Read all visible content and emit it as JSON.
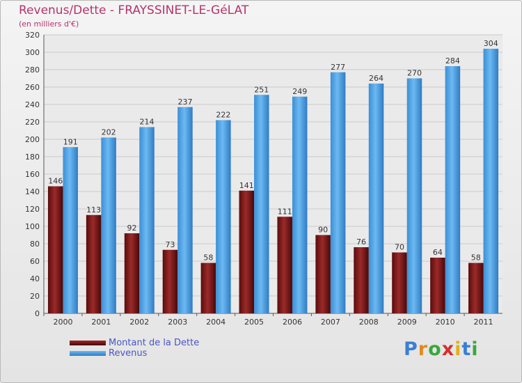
{
  "chart_data": {
    "type": "bar",
    "title": "Revenus/Dette - FRAYSSINET-LE-GéLAT",
    "subtitle": "(en milliers d'€)",
    "categories": [
      "2000",
      "2001",
      "2002",
      "2003",
      "2004",
      "2005",
      "2006",
      "2007",
      "2008",
      "2009",
      "2010",
      "2011"
    ],
    "series": [
      {
        "name": "Montant de la Dette",
        "color": "#7a1a1a",
        "values": [
          146,
          113,
          92,
          73,
          58,
          141,
          111,
          90,
          76,
          70,
          64,
          58
        ]
      },
      {
        "name": "Revenus",
        "color": "#4aa0e2",
        "values": [
          191,
          202,
          214,
          237,
          222,
          251,
          249,
          277,
          264,
          270,
          284,
          304
        ]
      }
    ],
    "ylim": [
      0,
      320
    ],
    "ytick_step": 20,
    "grid": true,
    "legend_position": "bottom-left",
    "xlabel": "",
    "ylabel": ""
  },
  "logo": {
    "letters": [
      "P",
      "r",
      "o",
      "x",
      "i",
      "t",
      "i"
    ],
    "colors": [
      "#3a7fd5",
      "#e38a1c",
      "#3aa83a",
      "#d62f2f",
      "#e0b21a",
      "#3a7fd5",
      "#3aa83a"
    ]
  }
}
